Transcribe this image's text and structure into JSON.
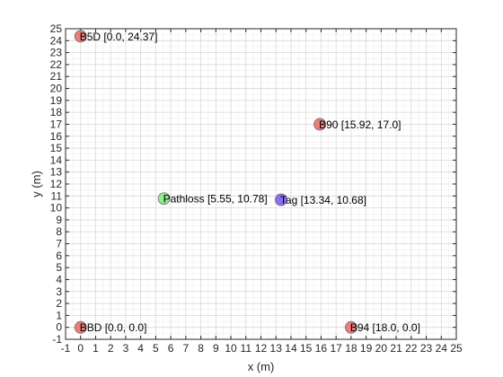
{
  "chart_data": {
    "type": "scatter",
    "xlabel": "x (m)",
    "ylabel": "y (m)",
    "xlim": [
      -1,
      25
    ],
    "ylim": [
      -1,
      25
    ],
    "xticks": [
      -1,
      0,
      1,
      2,
      3,
      4,
      5,
      6,
      7,
      8,
      9,
      10,
      11,
      12,
      13,
      14,
      15,
      16,
      17,
      18,
      19,
      20,
      21,
      22,
      23,
      24,
      25
    ],
    "yticks": [
      -1,
      0,
      1,
      2,
      3,
      4,
      5,
      6,
      7,
      8,
      9,
      10,
      11,
      12,
      13,
      14,
      15,
      16,
      17,
      18,
      19,
      20,
      21,
      22,
      23,
      24,
      25
    ],
    "grid": true,
    "minor_grid": true,
    "colors": {
      "anchor": "#f07b7b",
      "pathloss": "#90ee90",
      "tag": "#8b6df7",
      "grid_major": "#d8d8d8",
      "grid_minor": "#efefef",
      "axis": "#262626"
    },
    "points": [
      {
        "name": "B5D",
        "label": "B5D [0.0, 24.37]",
        "x": 0.0,
        "y": 24.37,
        "kind": "anchor"
      },
      {
        "name": "B90",
        "label": "B90 [15.92, 17.0]",
        "x": 15.92,
        "y": 17.0,
        "kind": "anchor"
      },
      {
        "name": "BBD",
        "label": "BBD [0.0, 0.0]",
        "x": 0.0,
        "y": 0.0,
        "kind": "anchor"
      },
      {
        "name": "B94",
        "label": "B94 [18.0, 0.0]",
        "x": 18.0,
        "y": 0.0,
        "kind": "anchor"
      },
      {
        "name": "Pathloss",
        "label": "Pathloss [5.55, 10.78]",
        "x": 5.55,
        "y": 10.78,
        "kind": "pathloss"
      },
      {
        "name": "Tag",
        "label": "Tag [13.34, 10.68]",
        "x": 13.34,
        "y": 10.68,
        "kind": "tag"
      }
    ]
  }
}
